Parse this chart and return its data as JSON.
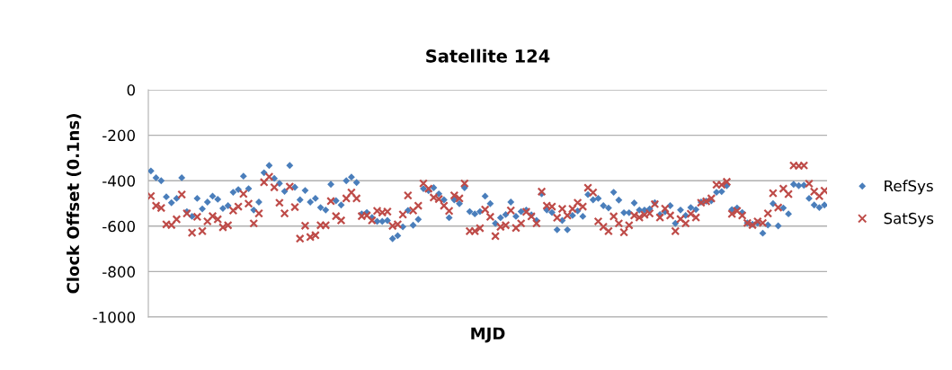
{
  "chart_data": {
    "type": "scatter",
    "title": "Satellite 124",
    "xlabel": "MJD",
    "ylabel": "Clock Offset (0.1ns)",
    "categories": [
      null,
      null,
      null,
      null,
      null,
      null,
      null,
      null,
      null,
      null,
      null,
      null,
      null,
      null,
      null,
      null,
      null,
      null,
      null,
      null,
      null,
      null,
      null,
      null,
      null,
      null,
      null,
      null,
      null,
      null,
      null,
      null,
      null,
      null,
      null,
      null,
      null,
      null,
      null,
      null,
      null,
      null,
      null,
      null,
      null,
      null,
      null,
      null,
      null,
      null,
      null,
      null,
      null,
      null,
      null,
      null,
      null,
      null,
      null,
      null,
      null,
      null,
      null,
      null,
      null,
      null,
      null,
      null,
      null,
      null,
      null,
      null,
      null,
      null,
      null,
      null,
      null,
      null,
      null,
      null,
      null,
      null,
      null,
      null,
      null,
      null,
      null,
      null,
      null,
      null,
      null,
      null,
      null,
      null,
      null,
      null,
      null,
      null,
      null,
      null,
      null,
      null,
      null,
      null,
      null,
      null,
      null,
      null,
      null,
      null,
      null,
      null,
      null,
      null,
      null,
      null,
      null,
      null,
      null,
      null,
      null,
      null,
      null,
      null,
      null,
      null,
      null,
      null,
      null,
      null,
      null,
      null
    ],
    "series": [
      {
        "name": "RefSys",
        "color": "#4a7ebb",
        "marker": "diamond",
        "values": [
          -357,
          -387,
          -400,
          -471,
          -497,
          -478,
          -387,
          -536,
          -557,
          -478,
          -524,
          -494,
          -468,
          -482,
          -522,
          -510,
          -451,
          -439,
          -380,
          -435,
          -529,
          -494,
          -365,
          -333,
          -390,
          -412,
          -447,
          -333,
          -429,
          -484,
          -443,
          -494,
          -478,
          -518,
          -529,
          -416,
          -488,
          -507,
          -400,
          -384,
          -408,
          -546,
          -540,
          -562,
          -579,
          -579,
          -575,
          -655,
          -642,
          -603,
          -531,
          -596,
          -570,
          -435,
          -444,
          -431,
          -458,
          -484,
          -563,
          -484,
          -501,
          -431,
          -536,
          -546,
          -536,
          -468,
          -501,
          -588,
          -563,
          -549,
          -494,
          -557,
          -536,
          -529,
          -550,
          -575,
          -458,
          -529,
          -540,
          -616,
          -575,
          -616,
          -553,
          -533,
          -557,
          -461,
          -484,
          -478,
          -510,
          -520,
          -451,
          -485,
          -541,
          -541,
          -498,
          -529,
          -529,
          -524,
          -497,
          -549,
          -537,
          -510,
          -588,
          -529,
          -553,
          -518,
          -527,
          -494,
          -490,
          -488,
          -451,
          -448,
          -422,
          -527,
          -520,
          -540,
          -586,
          -592,
          -586,
          -631,
          -595,
          -501,
          -599,
          -520,
          -546,
          -416,
          -422,
          -420,
          -478,
          -507,
          -518,
          -507
        ]
      },
      {
        "name": "SatSys",
        "color": "#be4b48",
        "marker": "cross",
        "values": [
          -468,
          -510,
          -520,
          -592,
          -595,
          -570,
          -461,
          -544,
          -629,
          -559,
          -622,
          -579,
          -556,
          -570,
          -605,
          -596,
          -531,
          -514,
          -458,
          -501,
          -588,
          -544,
          -407,
          -383,
          -429,
          -497,
          -544,
          -426,
          -516,
          -655,
          -598,
          -648,
          -640,
          -596,
          -596,
          -490,
          -556,
          -575,
          -478,
          -452,
          -478,
          -556,
          -553,
          -575,
          -533,
          -540,
          -536,
          -599,
          -592,
          -549,
          -465,
          -531,
          -510,
          -412,
          -435,
          -474,
          -481,
          -510,
          -533,
          -465,
          -478,
          -412,
          -622,
          -622,
          -609,
          -527,
          -559,
          -644,
          -603,
          -596,
          -531,
          -608,
          -588,
          -537,
          -557,
          -588,
          -448,
          -510,
          -514,
          -563,
          -524,
          -553,
          -524,
          -497,
          -514,
          -431,
          -452,
          -579,
          -603,
          -622,
          -557,
          -588,
          -627,
          -596,
          -553,
          -562,
          -550,
          -544,
          -503,
          -562,
          -523,
          -553,
          -622,
          -569,
          -588,
          -546,
          -562,
          -497,
          -491,
          -478,
          -418,
          -418,
          -405,
          -546,
          -533,
          -553,
          -586,
          -595,
          -579,
          -586,
          -544,
          -455,
          -518,
          -435,
          -459,
          -333,
          -335,
          -333,
          -413,
          -448,
          -468,
          -444
        ]
      }
    ],
    "ylim": [
      -1000,
      0
    ],
    "yticks": [
      -1000,
      -800,
      -600,
      -400,
      -200,
      0
    ],
    "grid": "y",
    "legend": "right",
    "tick_labels": "y"
  }
}
